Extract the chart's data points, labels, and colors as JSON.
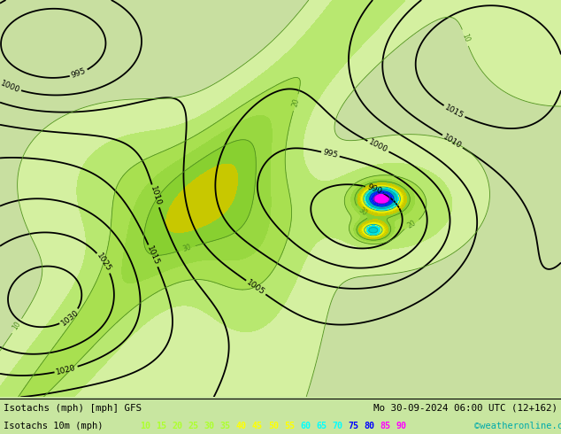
{
  "title_left": "Isotachs (mph) [mph] GFS",
  "title_right": "Mo 30-09-2024 06:00 UTC (12+162)",
  "legend_label": "Isotachs 10m (mph)",
  "copyright": "©weatheronline.co.uk",
  "legend_values": [
    10,
    15,
    20,
    25,
    30,
    35,
    40,
    45,
    50,
    55,
    60,
    65,
    70,
    75,
    80,
    85,
    90
  ],
  "legend_colors": [
    "#adff2f",
    "#adff2f",
    "#adff2f",
    "#adff2f",
    "#adff2f",
    "#adff2f",
    "#ffff00",
    "#ffff00",
    "#ffff00",
    "#ffff00",
    "#00ffff",
    "#00ffff",
    "#00ffff",
    "#0000ff",
    "#0000ff",
    "#ff00ff",
    "#ff00ff"
  ],
  "bg_color": "#c8e6a0",
  "map_bg": "#c8dfa0",
  "bottom_bar_bg": "#ffffff",
  "figsize": [
    6.34,
    4.9
  ],
  "dpi": 100,
  "fill_levels": [
    0,
    10,
    15,
    20,
    25,
    30,
    35,
    40,
    45,
    50,
    55,
    60,
    65,
    70,
    75,
    80,
    85,
    90,
    200
  ],
  "fill_colors": [
    "#c8dfa0",
    "#d4f0a0",
    "#b8e870",
    "#a8e050",
    "#98d840",
    "#88d030",
    "#c8c800",
    "#e0e000",
    "#f0f000",
    "#ffff00",
    "#00e8e8",
    "#00d0d0",
    "#00b8b8",
    "#0060ff",
    "#0020ff",
    "#d000d0",
    "#ff00ff",
    "#ff00ff"
  ]
}
